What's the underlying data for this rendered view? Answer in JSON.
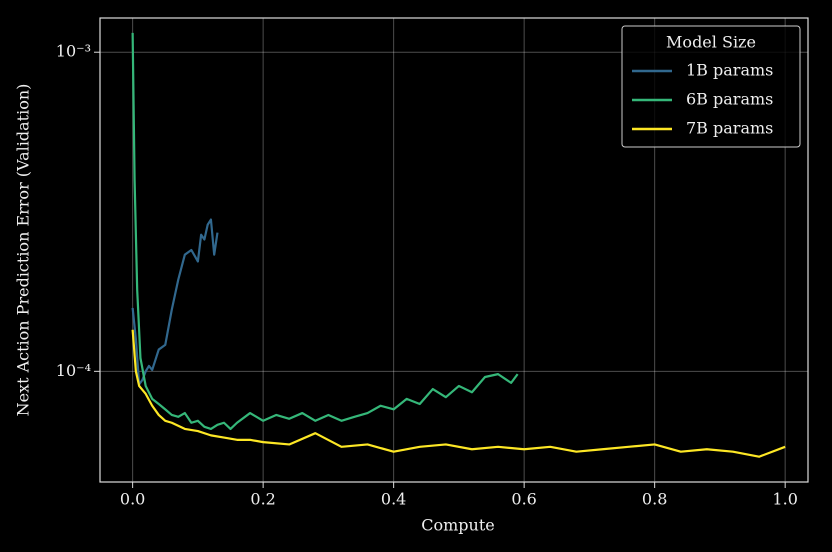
{
  "chart_data": {
    "type": "line",
    "xlabel": "Compute",
    "ylabel": "Next Action Prediction Error (Validation)",
    "yscale": "log",
    "grid": true,
    "legend_title": "Model Size",
    "legend_loc": "upper right",
    "xlim": [
      -0.05,
      1.035
    ],
    "ylim": [
      4.5e-05,
      0.00128
    ],
    "xticks": [
      {
        "value": 0,
        "label": "0.0"
      },
      0.2,
      0.4,
      0.6,
      0.8,
      {
        "value": 1,
        "label": "1.0"
      }
    ],
    "yticks": [
      {
        "value": 0.0001,
        "label": "10⁻⁴"
      },
      {
        "value": 0.001,
        "label": "10⁻³"
      }
    ],
    "series": [
      {
        "name": "1B params",
        "color": "#31688e",
        "x": [
          0,
          0.005,
          0.01,
          0.015,
          0.02,
          0.025,
          0.03,
          0.04,
          0.05,
          0.06,
          0.065,
          0.07,
          0.08,
          0.09,
          0.1,
          0.105,
          0.11,
          0.115,
          0.12,
          0.125,
          0.13
        ],
        "values": [
          0.000158,
          0.000126,
          9.1e-05,
          9.4e-05,
          0.0001,
          0.000104,
          0.000101,
          0.000117,
          0.000121,
          0.000156,
          0.000174,
          0.000194,
          0.000232,
          0.00024,
          0.000221,
          0.000268,
          0.000259,
          0.000288,
          0.000299,
          0.000232,
          0.000272
        ]
      },
      {
        "name": "6B params",
        "color": "#35b779",
        "x": [
          0,
          0.003,
          0.007,
          0.012,
          0.02,
          0.03,
          0.04,
          0.05,
          0.06,
          0.07,
          0.08,
          0.09,
          0.1,
          0.11,
          0.12,
          0.13,
          0.14,
          0.15,
          0.16,
          0.18,
          0.2,
          0.22,
          0.24,
          0.26,
          0.28,
          0.3,
          0.32,
          0.34,
          0.36,
          0.38,
          0.4,
          0.42,
          0.44,
          0.46,
          0.48,
          0.5,
          0.52,
          0.54,
          0.56,
          0.58,
          0.59
        ],
        "values": [
          0.00115,
          0.0004,
          0.00018,
          0.00011,
          9e-05,
          8.2e-05,
          7.9e-05,
          7.6e-05,
          7.3e-05,
          7.2e-05,
          7.4e-05,
          6.9e-05,
          7e-05,
          6.7e-05,
          6.6e-05,
          6.8e-05,
          6.9e-05,
          6.6e-05,
          6.9e-05,
          7.4e-05,
          7e-05,
          7.3e-05,
          7.1e-05,
          7.4e-05,
          7e-05,
          7.3e-05,
          7e-05,
          7.2e-05,
          7.4e-05,
          7.8e-05,
          7.6e-05,
          8.2e-05,
          7.9e-05,
          8.8e-05,
          8.3e-05,
          9e-05,
          8.6e-05,
          9.6e-05,
          9.8e-05,
          9.2e-05,
          9.8e-05
        ]
      },
      {
        "name": "7B params",
        "color": "#fde725",
        "x": [
          0,
          0.005,
          0.01,
          0.02,
          0.03,
          0.04,
          0.05,
          0.06,
          0.08,
          0.1,
          0.12,
          0.14,
          0.16,
          0.18,
          0.2,
          0.24,
          0.28,
          0.32,
          0.36,
          0.4,
          0.44,
          0.48,
          0.52,
          0.56,
          0.6,
          0.64,
          0.68,
          0.72,
          0.76,
          0.8,
          0.84,
          0.88,
          0.92,
          0.96,
          1.0
        ],
        "values": [
          0.000135,
          0.0001,
          9e-05,
          8.5e-05,
          7.8e-05,
          7.3e-05,
          7e-05,
          6.9e-05,
          6.6e-05,
          6.5e-05,
          6.3e-05,
          6.2e-05,
          6.1e-05,
          6.1e-05,
          6e-05,
          5.9e-05,
          6.4e-05,
          5.8e-05,
          5.9e-05,
          5.6e-05,
          5.8e-05,
          5.9e-05,
          5.7e-05,
          5.8e-05,
          5.7e-05,
          5.8e-05,
          5.6e-05,
          5.7e-05,
          5.8e-05,
          5.9e-05,
          5.6e-05,
          5.7e-05,
          5.6e-05,
          5.4e-05,
          5.8e-05
        ]
      }
    ]
  }
}
